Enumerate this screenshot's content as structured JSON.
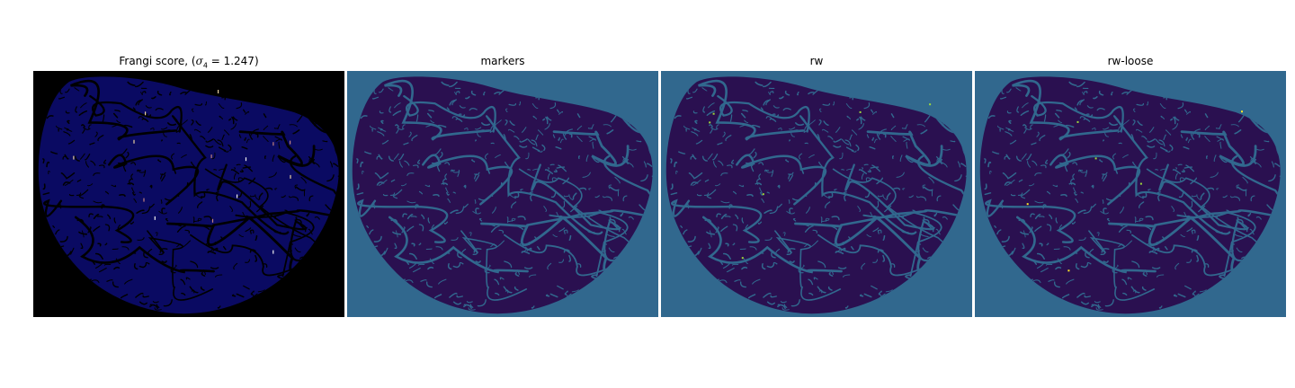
{
  "figure": {
    "panels": [
      {
        "title_prefix": "Frangi score, (",
        "title_math_symbol": "σ",
        "title_math_subscript": "4",
        "title_math_rest": " = 1.247)",
        "background_color": "#000000",
        "shape_fill": "#0a0a62",
        "vessel_color": "#000000",
        "highlight_colors": [
          "#e8d0a0",
          "#c08080",
          "#f0f0f0"
        ]
      },
      {
        "title": "markers",
        "background_color": "#31688e",
        "shape_fill": "#2a1050",
        "vessel_color": "#31688e",
        "highlight_colors": []
      },
      {
        "title": "rw",
        "background_color": "#31688e",
        "shape_fill": "#2a1050",
        "vessel_color": "#31688e",
        "highlight_colors": [
          "#9fda3a"
        ]
      },
      {
        "title": "rw-loose",
        "background_color": "#31688e",
        "shape_fill": "#2a1050",
        "vessel_color": "#31688e",
        "highlight_colors": [
          "#9fda3a",
          "#fde725"
        ]
      }
    ]
  }
}
